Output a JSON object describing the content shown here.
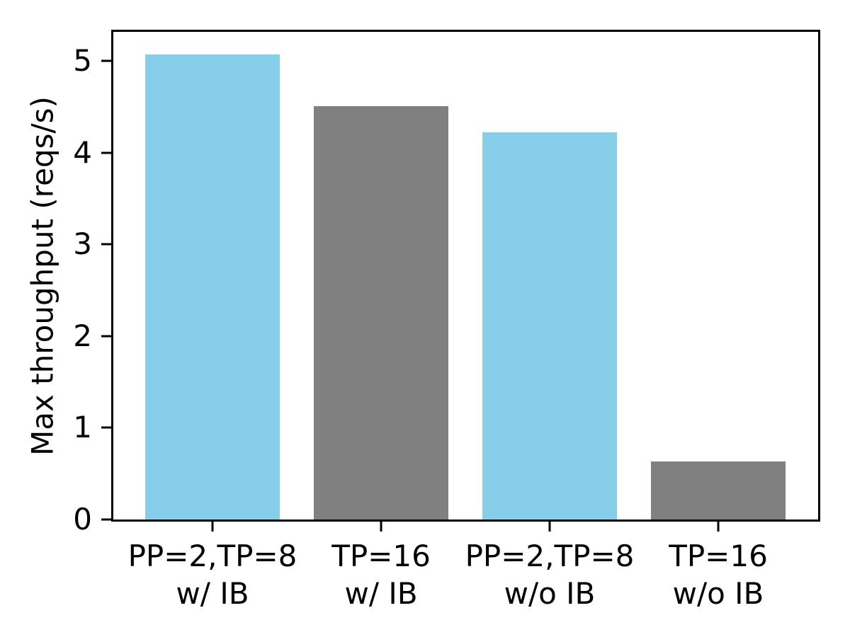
{
  "figure": {
    "background": "#ffffff"
  },
  "chart_data": {
    "type": "bar",
    "title": "",
    "xlabel": "",
    "ylabel": "Max throughput (reqs/s)",
    "categories": [
      "PP=2,TP=8\nw/ IB",
      "TP=16\nw/ IB",
      "PP=2,TP=8\nw/o IB",
      "TP=16\nw/o IB"
    ],
    "values": [
      5.07,
      4.51,
      4.22,
      0.63
    ],
    "bar_colors": [
      "#87ceeb",
      "#808080",
      "#87ceeb",
      "#808080"
    ],
    "yticks": [
      0,
      1,
      2,
      3,
      4,
      5
    ],
    "ylim": [
      0,
      5.32
    ],
    "grid": false,
    "legend": "none",
    "axis_color": "#000000",
    "text_color": "#000000"
  }
}
